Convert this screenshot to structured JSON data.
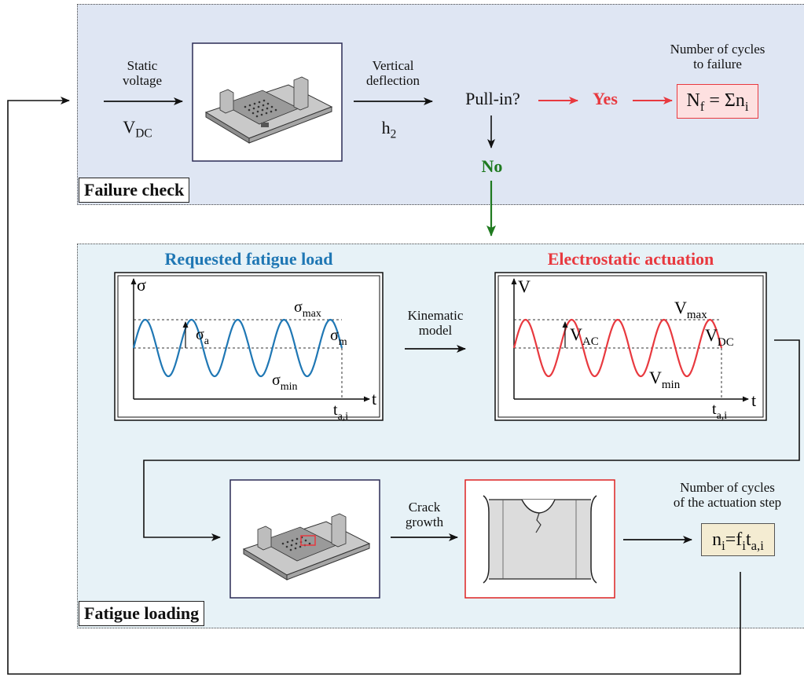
{
  "failure_check": {
    "label": "Failure check",
    "input_label_line1": "Static",
    "input_label_line2": "voltage",
    "input_symbol": "V",
    "input_symbol_sub": "DC",
    "output_label_line1": "Vertical",
    "output_label_line2": "deflection",
    "output_symbol": "h",
    "output_symbol_sub": "2",
    "decision": "Pull-in?",
    "yes": "Yes",
    "no": "No",
    "result_title_line1": "Number of cycles",
    "result_title_line2": "to failure",
    "result_formula": {
      "a": "N",
      "a_sub": "f",
      "b": " = Σn",
      "b_sub": "i"
    }
  },
  "fatigue_loading": {
    "label": "Fatigue loading",
    "requested_title": "Requested fatigue load",
    "electrostatic_title": "Electrostatic actuation",
    "kinematic_line1": "Kinematic",
    "kinematic_line2": "model",
    "stress_plot": {
      "y_axis": "σ",
      "x_axis": "t",
      "max": {
        "base": "σ",
        "sub": "max"
      },
      "amp": {
        "base": "σ",
        "sub": "a"
      },
      "mean": {
        "base": "σ",
        "sub": "m"
      },
      "min": {
        "base": "σ",
        "sub": "min"
      },
      "time": {
        "base": "t",
        "sub": "a,i"
      }
    },
    "voltage_plot": {
      "y_axis": "V",
      "x_axis": "t",
      "max": {
        "base": "V",
        "sub": "max"
      },
      "amp": {
        "base": "V",
        "sub": "AC"
      },
      "mean": {
        "base": "V",
        "sub": "DC"
      },
      "min": {
        "base": "V",
        "sub": "min"
      },
      "time": {
        "base": "t",
        "sub": "a,i"
      }
    },
    "crack_line1": "Crack",
    "crack_line2": "growth",
    "steps_title_line1": "Number of cycles",
    "steps_title_line2": "of the actuation step",
    "steps_formula": {
      "a": "n",
      "a_sub": "i",
      "b": "=f",
      "b_sub": "i",
      "c": "t",
      "c_sub": "a,i"
    }
  },
  "colors": {
    "blue": "#1f77b4",
    "red": "#e8393f",
    "green": "#1f7a1f",
    "panel_top": "#dfe6f3",
    "panel_bottom": "#e7f2f7"
  }
}
